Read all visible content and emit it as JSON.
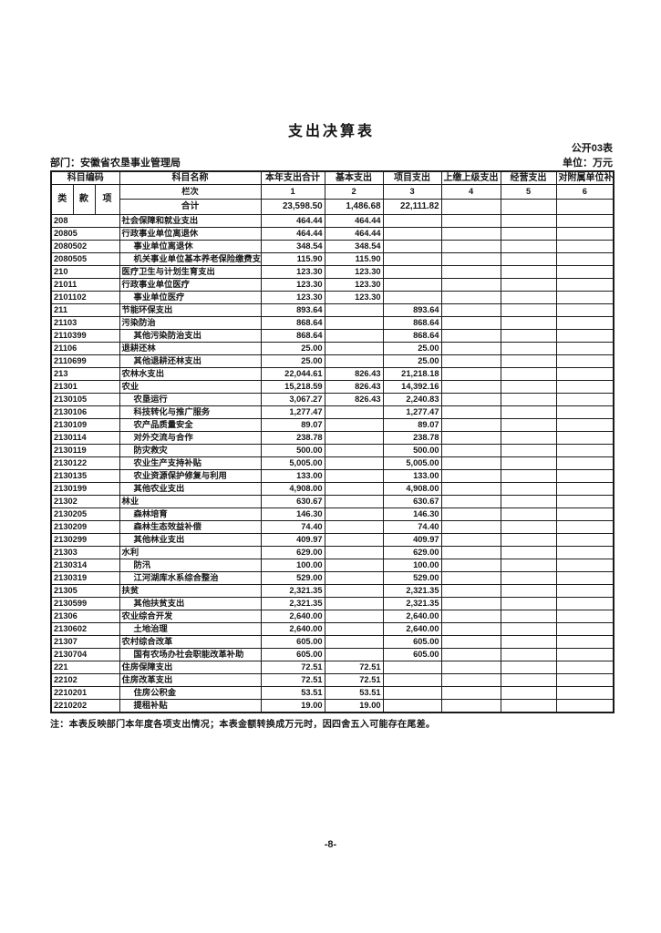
{
  "page": {
    "title": "支出决算表",
    "table_code": "公开03表",
    "unit_label": "单位：万元",
    "department_label": "部门：安徽省农垦事业管理局",
    "note": "注：本表反映部门本年度各项支出情况；本表金额转换成万元时，因四舍五入可能存在尾差。",
    "page_number": "-8-"
  },
  "table": {
    "header": {
      "subject_code": "科目编码",
      "subject_name": "科目名称",
      "columns": [
        "本年支出合计",
        "基本支出",
        "项目支出",
        "上缴上级支出",
        "经营支出",
        "对附属单位补助支出"
      ],
      "code_sub_columns": [
        "类",
        "款",
        "项"
      ],
      "lanci_label": "栏次",
      "lanci_numbers": [
        "1",
        "2",
        "3",
        "4",
        "5",
        "6"
      ]
    },
    "total": {
      "name": "合计",
      "values": [
        "23,598.50",
        "1,486.68",
        "22,111.82",
        "",
        "",
        ""
      ]
    },
    "rows": [
      {
        "code": "208",
        "name": "社会保障和就业支出",
        "indent": false,
        "values": [
          "464.44",
          "464.44",
          "",
          "",
          "",
          ""
        ]
      },
      {
        "code": "20805",
        "name": "行政事业单位离退休",
        "indent": false,
        "values": [
          "464.44",
          "464.44",
          "",
          "",
          "",
          ""
        ]
      },
      {
        "code": "2080502",
        "name": "事业单位离退休",
        "indent": true,
        "values": [
          "348.54",
          "348.54",
          "",
          "",
          "",
          ""
        ]
      },
      {
        "code": "2080505",
        "name": "机关事业单位基本养老保险缴费支出",
        "indent": true,
        "values": [
          "115.90",
          "115.90",
          "",
          "",
          "",
          ""
        ]
      },
      {
        "code": "210",
        "name": "医疗卫生与计划生育支出",
        "indent": false,
        "values": [
          "123.30",
          "123.30",
          "",
          "",
          "",
          ""
        ]
      },
      {
        "code": "21011",
        "name": "行政事业单位医疗",
        "indent": false,
        "values": [
          "123.30",
          "123.30",
          "",
          "",
          "",
          ""
        ]
      },
      {
        "code": "2101102",
        "name": "事业单位医疗",
        "indent": true,
        "values": [
          "123.30",
          "123.30",
          "",
          "",
          "",
          ""
        ]
      },
      {
        "code": "211",
        "name": "节能环保支出",
        "indent": false,
        "values": [
          "893.64",
          "",
          "893.64",
          "",
          "",
          ""
        ]
      },
      {
        "code": "21103",
        "name": "污染防治",
        "indent": false,
        "values": [
          "868.64",
          "",
          "868.64",
          "",
          "",
          ""
        ]
      },
      {
        "code": "2110399",
        "name": "其他污染防治支出",
        "indent": true,
        "values": [
          "868.64",
          "",
          "868.64",
          "",
          "",
          ""
        ]
      },
      {
        "code": "21106",
        "name": "退耕还林",
        "indent": false,
        "values": [
          "25.00",
          "",
          "25.00",
          "",
          "",
          ""
        ]
      },
      {
        "code": "2110699",
        "name": "其他退耕还林支出",
        "indent": true,
        "values": [
          "25.00",
          "",
          "25.00",
          "",
          "",
          ""
        ]
      },
      {
        "code": "213",
        "name": "农林水支出",
        "indent": false,
        "values": [
          "22,044.61",
          "826.43",
          "21,218.18",
          "",
          "",
          ""
        ]
      },
      {
        "code": "21301",
        "name": "农业",
        "indent": false,
        "values": [
          "15,218.59",
          "826.43",
          "14,392.16",
          "",
          "",
          ""
        ]
      },
      {
        "code": "2130105",
        "name": "农垦运行",
        "indent": true,
        "values": [
          "3,067.27",
          "826.43",
          "2,240.83",
          "",
          "",
          ""
        ]
      },
      {
        "code": "2130106",
        "name": "科技转化与推广服务",
        "indent": true,
        "values": [
          "1,277.47",
          "",
          "1,277.47",
          "",
          "",
          ""
        ]
      },
      {
        "code": "2130109",
        "name": "农产品质量安全",
        "indent": true,
        "values": [
          "89.07",
          "",
          "89.07",
          "",
          "",
          ""
        ]
      },
      {
        "code": "2130114",
        "name": "对外交流与合作",
        "indent": true,
        "values": [
          "238.78",
          "",
          "238.78",
          "",
          "",
          ""
        ]
      },
      {
        "code": "2130119",
        "name": "防灾救灾",
        "indent": true,
        "values": [
          "500.00",
          "",
          "500.00",
          "",
          "",
          ""
        ]
      },
      {
        "code": "2130122",
        "name": "农业生产支持补贴",
        "indent": true,
        "values": [
          "5,005.00",
          "",
          "5,005.00",
          "",
          "",
          ""
        ]
      },
      {
        "code": "2130135",
        "name": "农业资源保护修复与利用",
        "indent": true,
        "values": [
          "133.00",
          "",
          "133.00",
          "",
          "",
          ""
        ]
      },
      {
        "code": "2130199",
        "name": "其他农业支出",
        "indent": true,
        "values": [
          "4,908.00",
          "",
          "4,908.00",
          "",
          "",
          ""
        ]
      },
      {
        "code": "21302",
        "name": "林业",
        "indent": false,
        "values": [
          "630.67",
          "",
          "630.67",
          "",
          "",
          ""
        ]
      },
      {
        "code": "2130205",
        "name": "森林培育",
        "indent": true,
        "values": [
          "146.30",
          "",
          "146.30",
          "",
          "",
          ""
        ]
      },
      {
        "code": "2130209",
        "name": "森林生态效益补偿",
        "indent": true,
        "values": [
          "74.40",
          "",
          "74.40",
          "",
          "",
          ""
        ]
      },
      {
        "code": "2130299",
        "name": "其他林业支出",
        "indent": true,
        "values": [
          "409.97",
          "",
          "409.97",
          "",
          "",
          ""
        ]
      },
      {
        "code": "21303",
        "name": "水利",
        "indent": false,
        "values": [
          "629.00",
          "",
          "629.00",
          "",
          "",
          ""
        ]
      },
      {
        "code": "2130314",
        "name": "防汛",
        "indent": true,
        "values": [
          "100.00",
          "",
          "100.00",
          "",
          "",
          ""
        ]
      },
      {
        "code": "2130319",
        "name": "江河湖库水系综合整治",
        "indent": true,
        "values": [
          "529.00",
          "",
          "529.00",
          "",
          "",
          ""
        ]
      },
      {
        "code": "21305",
        "name": "扶贫",
        "indent": false,
        "values": [
          "2,321.35",
          "",
          "2,321.35",
          "",
          "",
          ""
        ]
      },
      {
        "code": "2130599",
        "name": "其他扶贫支出",
        "indent": true,
        "values": [
          "2,321.35",
          "",
          "2,321.35",
          "",
          "",
          ""
        ]
      },
      {
        "code": "21306",
        "name": "农业综合开发",
        "indent": false,
        "values": [
          "2,640.00",
          "",
          "2,640.00",
          "",
          "",
          ""
        ]
      },
      {
        "code": "2130602",
        "name": "土地治理",
        "indent": true,
        "values": [
          "2,640.00",
          "",
          "2,640.00",
          "",
          "",
          ""
        ]
      },
      {
        "code": "21307",
        "name": "农村综合改革",
        "indent": false,
        "values": [
          "605.00",
          "",
          "605.00",
          "",
          "",
          ""
        ]
      },
      {
        "code": "2130704",
        "name": "国有农场办社会职能改革补助",
        "indent": true,
        "values": [
          "605.00",
          "",
          "605.00",
          "",
          "",
          ""
        ]
      },
      {
        "code": "221",
        "name": "住房保障支出",
        "indent": false,
        "values": [
          "72.51",
          "72.51",
          "",
          "",
          "",
          ""
        ]
      },
      {
        "code": "22102",
        "name": "住房改革支出",
        "indent": false,
        "values": [
          "72.51",
          "72.51",
          "",
          "",
          "",
          ""
        ]
      },
      {
        "code": "2210201",
        "name": "住房公积金",
        "indent": true,
        "values": [
          "53.51",
          "53.51",
          "",
          "",
          "",
          ""
        ]
      },
      {
        "code": "2210202",
        "name": "提租补贴",
        "indent": true,
        "values": [
          "19.00",
          "19.00",
          "",
          "",
          "",
          ""
        ]
      }
    ]
  }
}
